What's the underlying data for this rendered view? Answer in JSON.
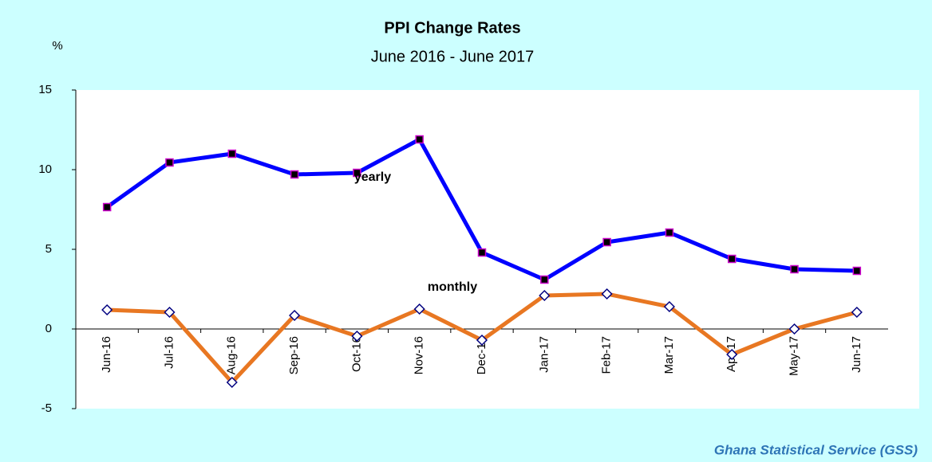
{
  "chart_data": {
    "type": "line",
    "title": "PPI Change Rates",
    "subtitle": "June  2016 - June 2017",
    "y_label": "%",
    "source": "Ghana Statistical Service (GSS)",
    "categories": [
      "Jun-16",
      "Jul-16",
      "Aug-16",
      "Sep-16",
      "Oct-16",
      "Nov-16",
      "Dec-16",
      "Jan-17",
      "Feb-17",
      "Mar-17",
      "Apr-17",
      "May-17",
      "Jun-17"
    ],
    "series": [
      {
        "name": "yearly",
        "color": "#0000ff",
        "marker": "square",
        "marker_fill": "#000000",
        "marker_stroke": "#cc00cc",
        "values": [
          7.65,
          10.45,
          11.0,
          9.7,
          9.8,
          11.9,
          4.8,
          3.1,
          5.45,
          6.05,
          4.4,
          3.75,
          3.65
        ]
      },
      {
        "name": "monthly",
        "color": "#e87722",
        "marker": "diamond",
        "marker_fill": "#ffffff",
        "marker_stroke": "#000080",
        "values": [
          1.2,
          1.05,
          -3.35,
          0.85,
          -0.45,
          1.25,
          -0.7,
          2.1,
          2.2,
          1.4,
          -1.6,
          0,
          1.05
        ]
      }
    ],
    "ylim": [
      -5,
      15
    ],
    "yticks": [
      -5,
      0,
      5,
      10,
      15
    ],
    "grid": false
  }
}
